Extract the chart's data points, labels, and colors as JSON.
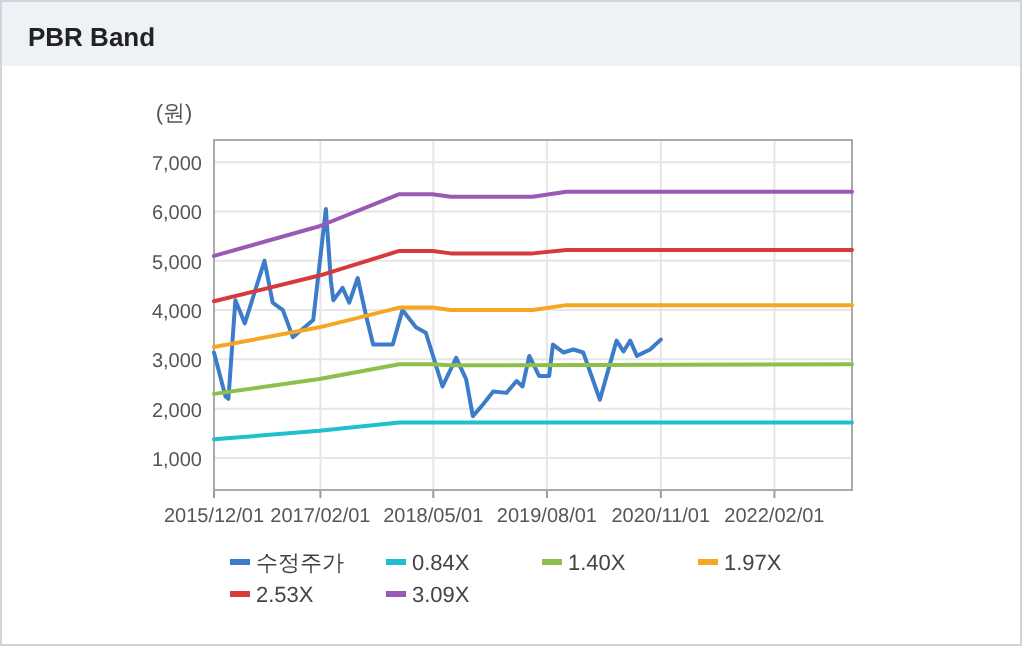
{
  "chart_data": {
    "type": "line",
    "title": "PBR Band",
    "ylabel": "(원)",
    "xlim": [
      "2015-12-01",
      "2022-12-10"
    ],
    "ylim": [
      350,
      7450
    ],
    "xticks": [
      {
        "value": "2015-12-01",
        "label": "2015/12/01"
      },
      {
        "value": "2017-02-01",
        "label": "2017/02/01"
      },
      {
        "value": "2018-05-01",
        "label": "2018/05/01"
      },
      {
        "value": "2019-08-01",
        "label": "2019/08/01"
      },
      {
        "value": "2020-11-01",
        "label": "2020/11/01"
      },
      {
        "value": "2022-02-01",
        "label": "2022/02/01"
      }
    ],
    "yticks": [
      {
        "value": 1000,
        "label": "1,000"
      },
      {
        "value": 2000,
        "label": "2,000"
      },
      {
        "value": 3000,
        "label": "3,000"
      },
      {
        "value": 4000,
        "label": "4,000"
      },
      {
        "value": 5000,
        "label": "5,000"
      },
      {
        "value": 6000,
        "label": "6,000"
      },
      {
        "value": 7000,
        "label": "7,000"
      }
    ],
    "grid": true,
    "legend": "bottom",
    "marker": "none",
    "series": [
      {
        "name": "수정주가",
        "color": "#3d7cc9",
        "x": [
          "2015-12-01",
          "2016-01-16",
          "2016-01-28",
          "2016-02-25",
          "2016-04-03",
          "2016-06-21",
          "2016-07-24",
          "2016-09-03",
          "2016-10-13",
          "2017-01-03",
          "2017-02-23",
          "2017-03-15",
          "2017-03-25",
          "2017-05-01",
          "2017-05-28",
          "2017-07-01",
          "2017-08-03",
          "2017-09-01",
          "2017-11-19",
          "2017-12-28",
          "2018-02-20",
          "2018-04-01",
          "2018-06-07",
          "2018-08-01",
          "2018-09-10",
          "2018-10-07",
          "2018-11-16",
          "2018-12-28",
          "2019-02-19",
          "2019-04-01",
          "2019-04-25",
          "2019-05-22",
          "2019-07-01",
          "2019-08-10",
          "2019-08-25",
          "2019-10-06",
          "2019-11-15",
          "2019-12-25",
          "2020-03-01",
          "2020-05-07",
          "2020-06-04",
          "2020-07-01",
          "2020-07-28",
          "2020-09-19",
          "2020-11-01"
        ],
        "values": [
          3140,
          2250,
          2200,
          4200,
          3730,
          5000,
          4150,
          4000,
          3450,
          3800,
          6050,
          4600,
          4200,
          4450,
          4150,
          4650,
          3900,
          3300,
          3300,
          4000,
          3650,
          3540,
          2450,
          3030,
          2600,
          1850,
          2080,
          2350,
          2320,
          2560,
          2450,
          3070,
          2660,
          2660,
          3300,
          3140,
          3200,
          3140,
          2180,
          3380,
          3160,
          3380,
          3070,
          3200,
          3400
        ]
      },
      {
        "name": "0.84X",
        "color": "#1fbfcf",
        "x": [
          "2015-12-01",
          "2017-01-28",
          "2017-12-15",
          "2022-12-10"
        ],
        "values": [
          1380,
          1550,
          1720,
          1720
        ]
      },
      {
        "name": "1.40X",
        "color": "#8dc04a",
        "x": [
          "2015-12-01",
          "2017-01-28",
          "2017-12-15",
          "2018-04-28",
          "2018-07-10",
          "2022-12-10"
        ],
        "values": [
          2300,
          2600,
          2900,
          2900,
          2880,
          2900
        ]
      },
      {
        "name": "1.97X",
        "color": "#f5a623",
        "x": [
          "2015-12-01",
          "2017-01-28",
          "2017-12-15",
          "2018-04-28",
          "2018-07-10",
          "2019-06-05",
          "2019-10-18",
          "2022-12-10"
        ],
        "values": [
          3250,
          3650,
          4050,
          4050,
          4000,
          4000,
          4100,
          4100
        ]
      },
      {
        "name": "2.53X",
        "color": "#d63a3a",
        "x": [
          "2015-12-01",
          "2017-01-28",
          "2017-12-15",
          "2018-04-28",
          "2018-07-10",
          "2019-06-05",
          "2019-10-18",
          "2022-12-10"
        ],
        "values": [
          4180,
          4700,
          5200,
          5200,
          5150,
          5150,
          5220,
          5220
        ]
      },
      {
        "name": "3.09X",
        "color": "#9b59b6",
        "x": [
          "2015-12-01",
          "2017-01-28",
          "2017-12-15",
          "2018-04-28",
          "2018-07-10",
          "2019-06-05",
          "2019-10-18",
          "2022-12-10"
        ],
        "values": [
          5100,
          5700,
          6350,
          6350,
          6300,
          6300,
          6400,
          6400
        ]
      }
    ]
  }
}
